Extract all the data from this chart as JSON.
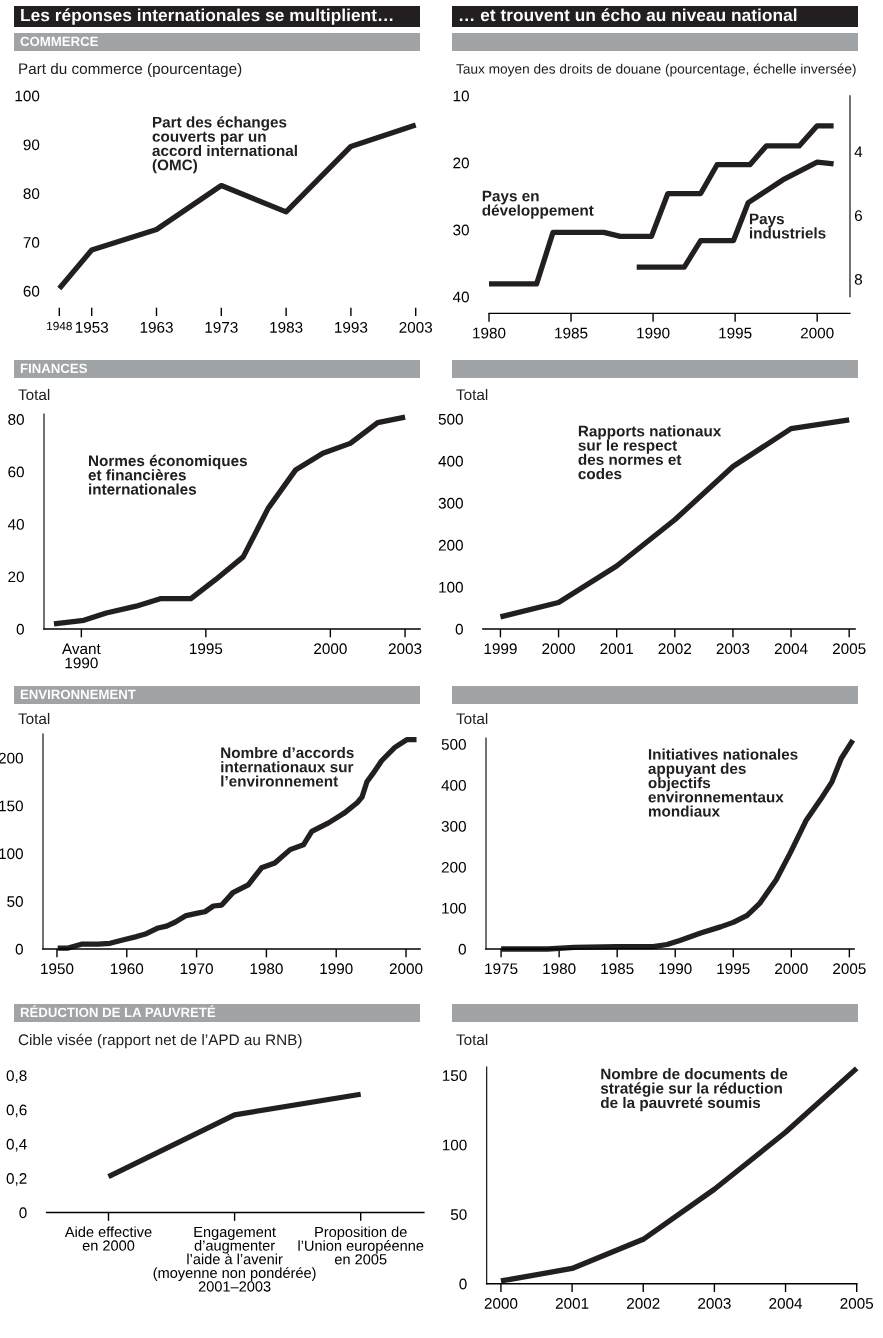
{
  "chart_data": [
    {
      "type": "line",
      "title": "Les réponses internationales se multiplient…",
      "subtitle": "COMMERCE",
      "ylabel": "Part du commerce (pourcentage)",
      "xlim": [
        1948,
        2003
      ],
      "xticks": [
        1948,
        1953,
        1963,
        1973,
        1983,
        1993,
        2003
      ],
      "ylim": [
        60,
        100
      ],
      "yticks": [
        60,
        70,
        80,
        90,
        100
      ],
      "series": [
        {
          "name": "Part des échanges\ncouverts par un\naccord international\n(OMC)",
          "color": "#231f20",
          "x": [
            1948,
            1953,
            1963,
            1973,
            1983,
            1993,
            2003
          ],
          "values": [
            60.5,
            68.4,
            72.6,
            81.6,
            76.2,
            89.6,
            94.0
          ]
        }
      ]
    },
    {
      "type": "line",
      "title": "… et trouvent un écho au niveau national",
      "ylabel": "Taux moyen des droits de douane (pourcentage, échelle inversée)",
      "xlim": [
        1980,
        2002
      ],
      "xticks": [
        1980,
        1985,
        1990,
        1995,
        2000
      ],
      "ylim": [
        40,
        10
      ],
      "yticks": [
        10,
        20,
        30,
        40
      ],
      "y2lim": [
        8.55,
        2.25
      ],
      "y2ticks": [
        4,
        6,
        8
      ],
      "series": [
        {
          "name": "Pays en\ndéveloppement",
          "color": "#231f20",
          "x": [
            1980,
            1982.9,
            1983.9,
            1987,
            1988,
            1989.9,
            1990.9,
            1992.9,
            1993.9,
            1995.9,
            1996.9,
            1998.9,
            2000,
            2001
          ],
          "values": [
            38.1,
            38.1,
            30.4,
            30.4,
            31.0,
            31.0,
            24.6,
            24.6,
            20.3,
            20.3,
            17.5,
            17.5,
            14.5,
            14.5
          ]
        },
        {
          "name": "Pays\nindustriels",
          "color": "#231f20",
          "axis": "y2",
          "x": [
            1989,
            1991.9,
            1992.9,
            1994.9,
            1995.8,
            1997.9,
            2000,
            2001
          ],
          "values": [
            7.62,
            7.62,
            6.79,
            6.79,
            5.6,
            4.89,
            4.33,
            4.39
          ]
        }
      ]
    },
    {
      "type": "line",
      "subtitle": "FINANCES",
      "ylabel": "Total",
      "xlim": [
        1988.5,
        2003.6
      ],
      "xticks": [
        {
          "value": 1990,
          "label": "Avant\n1990"
        },
        1995,
        2000,
        2003
      ],
      "ylim": [
        0,
        82
      ],
      "yticks": [
        0,
        20,
        40,
        60,
        80
      ],
      "series": [
        {
          "name": "Normes économiques\net financières\ninternationales",
          "color": "#231f20",
          "x": [
            1988.9,
            1990.1,
            1991.0,
            1992.2,
            1993.2,
            1994.4,
            1995.4,
            1996.5,
            1997.5,
            1998.6,
            1999.7,
            2000.8,
            2001.9,
            2003.0
          ],
          "values": [
            2.0,
            3.3,
            6.1,
            8.7,
            11.6,
            11.6,
            18.9,
            27.5,
            46.0,
            60.6,
            67.0,
            70.8,
            78.7,
            80.8
          ]
        }
      ]
    },
    {
      "type": "line",
      "ylabel": "Total",
      "xlim": [
        1998.7,
        2005.1
      ],
      "xticks": [
        1999,
        2000,
        2001,
        2002,
        2003,
        2004,
        2005
      ],
      "ylim": [
        0,
        500
      ],
      "yticks": [
        0,
        100,
        200,
        300,
        400,
        500
      ],
      "series": [
        {
          "name": "Rapports nationaux\nsur le respect\ndes normes et\ncodes",
          "color": "#231f20",
          "x": [
            1999,
            2000,
            2001,
            2002,
            2003,
            2004,
            2005
          ],
          "values": [
            29,
            63,
            150,
            260,
            387,
            477,
            498
          ]
        }
      ]
    },
    {
      "type": "line",
      "subtitle": "ENVIRONNEMENT",
      "ylabel": "Total",
      "xlim": [
        1948,
        2002
      ],
      "xticks": [
        1950,
        1960,
        1970,
        1980,
        1990,
        2000
      ],
      "ylim": [
        0,
        225
      ],
      "yticks": [
        0,
        50,
        100,
        150,
        200
      ],
      "series": [
        {
          "name": "Nombre d’accords\ninternationaux sur\nl’environnement",
          "color": "#231f20",
          "x": [
            1950.1,
            1951.6,
            1953.5,
            1955.9,
            1957.6,
            1959.7,
            1961.4,
            1962.8,
            1964.5,
            1965.7,
            1966.9,
            1968.5,
            1970.5,
            1971.2,
            1972.4,
            1973.6,
            1975.2,
            1977.4,
            1979.3,
            1981.2,
            1983.4,
            1985.3,
            1986.5,
            1988.9,
            1991.1,
            1993.0,
            1993.7,
            1994.4,
            1995.3,
            1996.5,
            1998.4,
            2000.1,
            2001.5
          ],
          "values": [
            1,
            1,
            5,
            5,
            6,
            10,
            13,
            16,
            22,
            24,
            28,
            35,
            38,
            39,
            45,
            46,
            59,
            67,
            85,
            90,
            104,
            109,
            123,
            132,
            142,
            153,
            159,
            175,
            184,
            197,
            211,
            219,
            219
          ]
        }
      ]
    },
    {
      "type": "line",
      "ylabel": "Total",
      "xlim": [
        1973.7,
        2005.4
      ],
      "xticks": [
        1975,
        1980,
        1985,
        1990,
        1995,
        2000,
        2005
      ],
      "ylim": [
        0,
        515
      ],
      "yticks": [
        0,
        100,
        200,
        300,
        400,
        500
      ],
      "series": [
        {
          "name": "Initiatives nationales\nappuyant des\nobjectifs\nenvironnementaux\nmondiaux",
          "color": "#231f20",
          "x": [
            1975,
            1976.1,
            1979,
            1981.3,
            1985,
            1988.1,
            1989.3,
            1990.4,
            1992.2,
            1993.9,
            1995,
            1996.2,
            1997.3,
            1998.7,
            1999.9,
            2001.3,
            2002.5,
            2003.5,
            2004.3,
            2005.3
          ],
          "values": [
            0,
            0,
            0,
            4,
            6,
            6,
            11,
            21,
            39,
            54,
            65,
            82,
            112,
            169,
            234,
            315,
            364,
            408,
            465,
            510
          ]
        }
      ]
    },
    {
      "type": "line",
      "subtitle": "RÉDUCTION DE LA PAUVRETÉ",
      "ylabel": "Cible visée (rapport net de l’APD au RNB)",
      "categories": [
        "Aide effective\nen 2000",
        "Engagement\nd’augmenter\nl’aide à l’avenir\n(moyenne non pondérée)\n2001–2003",
        "Proposition de\nl’Union européenne\nen 2005"
      ],
      "ylim": [
        0,
        0.8
      ],
      "yticks": [
        0,
        {
          "value": 0.2,
          "label": "0,2"
        },
        {
          "value": 0.4,
          "label": "0,4"
        },
        {
          "value": 0.6,
          "label": "0,6"
        },
        {
          "value": 0.8,
          "label": "0,8"
        }
      ],
      "series": [
        {
          "color": "#231f20",
          "values": [
            0.21,
            0.57,
            0.69
          ]
        }
      ]
    },
    {
      "type": "line",
      "ylabel": "Total",
      "xlim": [
        1999.8,
        2005
      ],
      "xticks": [
        2000,
        2001,
        2002,
        2003,
        2004,
        2005
      ],
      "ylim": [
        0,
        156
      ],
      "yticks": [
        0,
        50,
        100,
        150
      ],
      "series": [
        {
          "name": "Nombre de documents de\nstratégie sur la réduction\nde la pauvreté soumis",
          "color": "#231f20",
          "x": [
            2000,
            2001,
            2002,
            2003,
            2004,
            2005
          ],
          "values": [
            2,
            11,
            32,
            68,
            109,
            155
          ]
        }
      ]
    }
  ]
}
